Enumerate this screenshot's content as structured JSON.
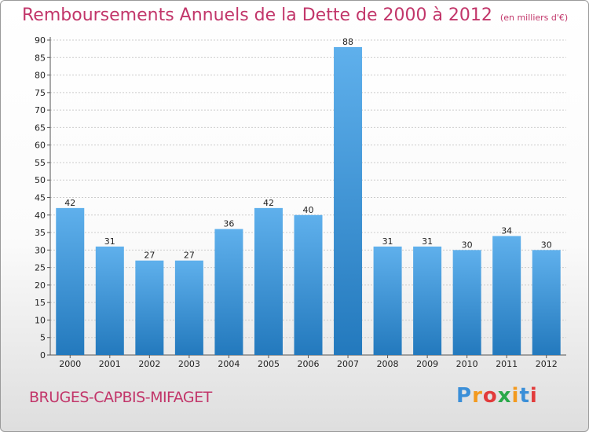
{
  "title": "Remboursements Annuels de la Dette de 2000 à 2012",
  "subtitle": "(en milliers d'€)",
  "commune": "BRUGES-CAPBIS-MIFAGET",
  "logo": {
    "letters": [
      "P",
      "r",
      "o",
      "x",
      "i",
      "t",
      "i"
    ],
    "colors": [
      "#3b8fd8",
      "#f39a1f",
      "#e23b3b",
      "#2aa84a",
      "#f39a1f",
      "#3b8fd8",
      "#e23b3b"
    ]
  },
  "colors": {
    "bar_light": "#5fb0ec",
    "bar_dark": "#2379bd",
    "grid": "#cccccc"
  },
  "chart_data": {
    "type": "bar",
    "categories": [
      "2000",
      "2001",
      "2002",
      "2003",
      "2004",
      "2005",
      "2006",
      "2007",
      "2008",
      "2009",
      "2010",
      "2011",
      "2012"
    ],
    "values": [
      42,
      31,
      27,
      27,
      36,
      42,
      40,
      88,
      31,
      31,
      30,
      34,
      30
    ],
    "ylim": [
      0,
      90
    ],
    "yticks": [
      0,
      5,
      10,
      15,
      20,
      25,
      30,
      35,
      40,
      45,
      50,
      55,
      60,
      65,
      70,
      75,
      80,
      85,
      90
    ],
    "grid": true,
    "title": "Remboursements Annuels de la Dette de 2000 à 2012",
    "subtitle": "(en milliers d'€)"
  }
}
